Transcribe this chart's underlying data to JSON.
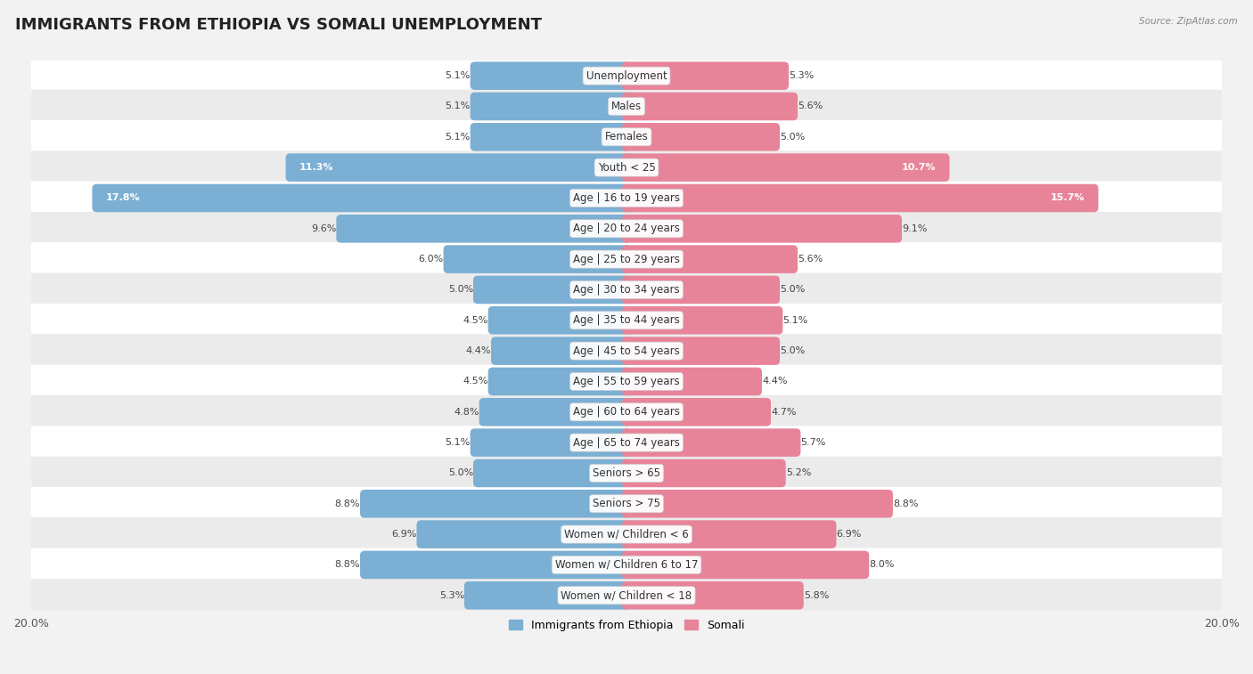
{
  "title": "IMMIGRANTS FROM ETHIOPIA VS SOMALI UNEMPLOYMENT",
  "source": "Source: ZipAtlas.com",
  "categories": [
    "Unemployment",
    "Males",
    "Females",
    "Youth < 25",
    "Age | 16 to 19 years",
    "Age | 20 to 24 years",
    "Age | 25 to 29 years",
    "Age | 30 to 34 years",
    "Age | 35 to 44 years",
    "Age | 45 to 54 years",
    "Age | 55 to 59 years",
    "Age | 60 to 64 years",
    "Age | 65 to 74 years",
    "Seniors > 65",
    "Seniors > 75",
    "Women w/ Children < 6",
    "Women w/ Children 6 to 17",
    "Women w/ Children < 18"
  ],
  "ethiopia_values": [
    5.1,
    5.1,
    5.1,
    11.3,
    17.8,
    9.6,
    6.0,
    5.0,
    4.5,
    4.4,
    4.5,
    4.8,
    5.1,
    5.0,
    8.8,
    6.9,
    8.8,
    5.3
  ],
  "somali_values": [
    5.3,
    5.6,
    5.0,
    10.7,
    15.7,
    9.1,
    5.6,
    5.0,
    5.1,
    5.0,
    4.4,
    4.7,
    5.7,
    5.2,
    8.8,
    6.9,
    8.0,
    5.8
  ],
  "ethiopia_color": "#7bafd4",
  "somali_color": "#e8849a",
  "ethiopia_label": "Immigrants from Ethiopia",
  "somali_label": "Somali",
  "xlim": 20.0,
  "bar_height": 0.62,
  "row_colors": [
    "#ffffff",
    "#ebebeb"
  ],
  "title_fontsize": 13,
  "label_fontsize": 8.5,
  "value_fontsize": 8.0
}
